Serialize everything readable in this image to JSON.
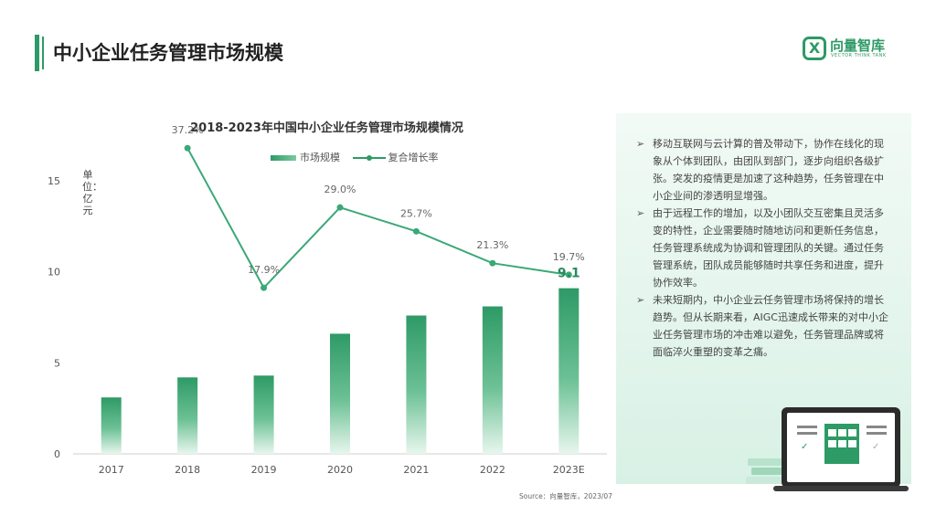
{
  "header": {
    "title": "中小企业任务管理市场规模"
  },
  "logo": {
    "name": "向量智库",
    "subtitle": "VECTOR THINK TANK",
    "mark": "X"
  },
  "chart_data": {
    "type": "bar",
    "title": "2018-2023年中国中小企业任务管理市场规模情况",
    "unit_label": "单位：亿元",
    "categories": [
      "2017",
      "2018",
      "2019",
      "2020",
      "2021",
      "2022",
      "2023E"
    ],
    "series": [
      {
        "name": "市场规模",
        "type": "bar",
        "values": [
          3.1,
          4.2,
          4.3,
          6.6,
          7.6,
          8.1,
          9.1
        ]
      },
      {
        "name": "复合增长率",
        "type": "line",
        "values": [
          null,
          37.2,
          17.9,
          29.0,
          25.7,
          21.3,
          19.7
        ],
        "labels": [
          "",
          "37.2%",
          "17.9%",
          "29.0%",
          "25.7%",
          "21.3%",
          "19.7%"
        ]
      }
    ],
    "highlight_label": "9.1",
    "ylim": [
      0,
      15
    ],
    "yticks": [
      0,
      5,
      10,
      15
    ],
    "colors": {
      "bar": "#2e9a66",
      "line": "#3aa877"
    }
  },
  "panel": {
    "bullets": [
      "移动互联网与云计算的普及带动下，协作在线化的现象从个体到团队，由团队到部门，逐步向组织各级扩张。突发的疫情更是加速了这种趋势，任务管理在中小企业间的渗透明显增强。",
      "由于远程工作的增加，以及小团队交互密集且灵活多变的特性，企业需要随时随地访问和更新任务信息，任务管理系统成为协调和管理团队的关键。通过任务管理系统，团队成员能够随时共享任务和进度，提升协作效率。",
      "未来短期内，中小企业云任务管理市场将保持的增长趋势。但从长期来看，AIGC迅速成长带来的对中小企业任务管理市场的冲击难以避免，任务管理品牌或将面临淬火重塑的变革之痛。"
    ],
    "bullet_marker": "➢"
  },
  "source": "Source：向量智库，2023/07"
}
